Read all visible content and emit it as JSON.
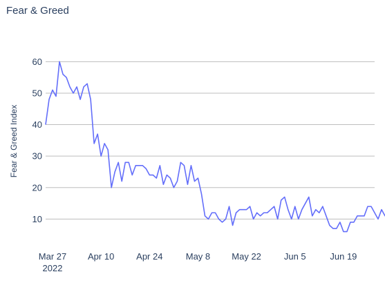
{
  "chart_data": {
    "type": "line",
    "title": "Fear & Greed",
    "xlabel": "",
    "ylabel": "Fear & Greed Index",
    "start_date": "2022-03-25",
    "end_date": "2022-06-28",
    "ylim": [
      3.5,
      66
    ],
    "yticks": [
      10,
      20,
      30,
      40,
      50,
      60
    ],
    "xticks": [
      {
        "date": "2022-03-27",
        "label": "Mar 27",
        "sublabel": "2022"
      },
      {
        "date": "2022-04-10",
        "label": "Apr 10",
        "sublabel": ""
      },
      {
        "date": "2022-04-24",
        "label": "Apr 24",
        "sublabel": ""
      },
      {
        "date": "2022-05-08",
        "label": "May 8",
        "sublabel": ""
      },
      {
        "date": "2022-05-22",
        "label": "May 22",
        "sublabel": ""
      },
      {
        "date": "2022-06-05",
        "label": "Jun 5",
        "sublabel": ""
      },
      {
        "date": "2022-06-19",
        "label": "Jun 19",
        "sublabel": ""
      }
    ],
    "grid": true,
    "legend": "none",
    "line_color": "#636efa",
    "grid_color": "#bdbdbd",
    "series": [
      {
        "name": "",
        "values": [
          40,
          48,
          51,
          49,
          60,
          56,
          55,
          52,
          50,
          52,
          48,
          52,
          53,
          48,
          34,
          37,
          30,
          34,
          32,
          20,
          25,
          28,
          22,
          28,
          28,
          24,
          27,
          27,
          27,
          26,
          24,
          24,
          23,
          27,
          21,
          24,
          23,
          20,
          22,
          28,
          27,
          21,
          27,
          22,
          23,
          18,
          11,
          10,
          12,
          12,
          10,
          9,
          10,
          14,
          8,
          12,
          13,
          13,
          13,
          14,
          10,
          12,
          11,
          12,
          12,
          13,
          14,
          10,
          16,
          17,
          13,
          10,
          14,
          10,
          13,
          15,
          17,
          11,
          13,
          12,
          14,
          11,
          8,
          7,
          7,
          9,
          6,
          6,
          9,
          9,
          11,
          11,
          11,
          14,
          14,
          12,
          10,
          13,
          11,
          11
        ]
      }
    ]
  }
}
